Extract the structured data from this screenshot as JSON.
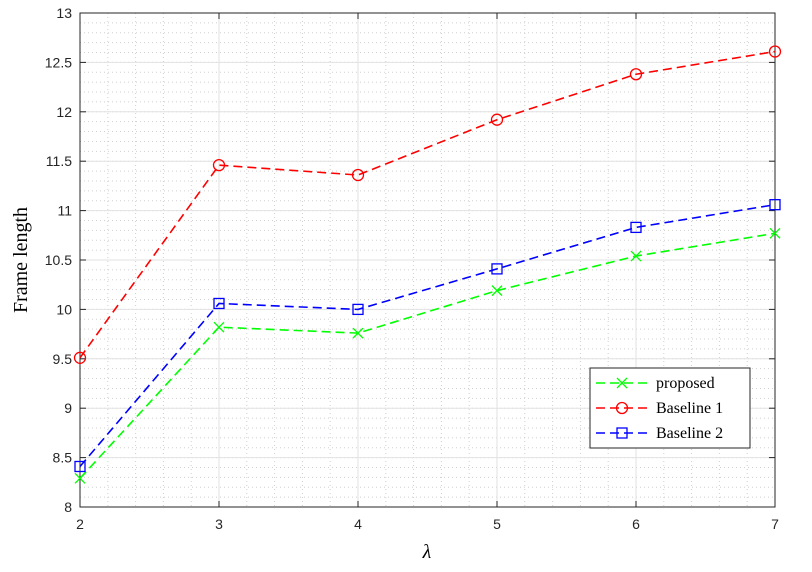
{
  "chart_data": {
    "type": "line",
    "title": "",
    "xlabel": "λ",
    "ylabel": "Frame length",
    "xlim": [
      2,
      7
    ],
    "ylim": [
      8,
      13
    ],
    "x": [
      2,
      3,
      4,
      5,
      6,
      7
    ],
    "xticks": [
      "2",
      "3",
      "4",
      "5",
      "6",
      "7"
    ],
    "yticks": [
      "8",
      "8.5",
      "9",
      "9.5",
      "10",
      "10.5",
      "11",
      "11.5",
      "12",
      "12.5",
      "13"
    ],
    "grid": true,
    "minor_grid": true,
    "legend_position": "lower-right",
    "series": [
      {
        "name": "proposed",
        "color": "#00ff00",
        "marker": "x",
        "line": "dashed",
        "values": [
          8.29,
          9.82,
          9.76,
          10.19,
          10.54,
          10.77
        ]
      },
      {
        "name": "Baseline 1",
        "color": "#ff0000",
        "marker": "circle",
        "line": "dashed",
        "values": [
          9.51,
          11.46,
          11.36,
          11.92,
          12.38,
          12.61
        ]
      },
      {
        "name": "Baseline 2",
        "color": "#0000ff",
        "marker": "square",
        "line": "dashed",
        "values": [
          8.41,
          10.06,
          10.0,
          10.41,
          10.83,
          11.06
        ]
      }
    ]
  }
}
